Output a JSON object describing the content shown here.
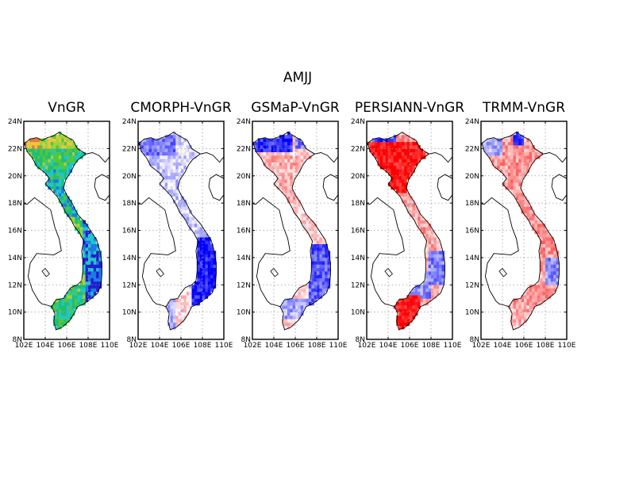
{
  "figure": {
    "title": "AMJJ"
  },
  "panels": [
    {
      "label": "VnGR",
      "scheme": "absolute"
    },
    {
      "label": "CMORPH-VnGR",
      "scheme": "cmorph"
    },
    {
      "label": "GSMaP-VnGR",
      "scheme": "gsmap"
    },
    {
      "label": "PERSIANN-VnGR",
      "scheme": "persiann"
    },
    {
      "label": "TRMM-VnGR",
      "scheme": "trmm"
    }
  ],
  "axes": {
    "x_ticks": [
      "102E",
      "104E",
      "106E",
      "108E",
      "110E"
    ],
    "y_ticks": [
      "24N",
      "22N",
      "20N",
      "18N",
      "16N",
      "14N",
      "12N",
      "10N",
      "8N"
    ],
    "lon_range": [
      102,
      110
    ],
    "lat_range": [
      8,
      24
    ],
    "grid": "dotted"
  },
  "colors": {
    "absolute_palette": [
      "#1e1ed2",
      "#1e78e6",
      "#1ec8c8",
      "#1ebe78",
      "#50c83c",
      "#a0d23c",
      "#e6c83c",
      "#e6783c"
    ],
    "positive": "#ff0000",
    "negative": "#0000ff",
    "coastline": "#000000",
    "gridline": "#999999"
  }
}
